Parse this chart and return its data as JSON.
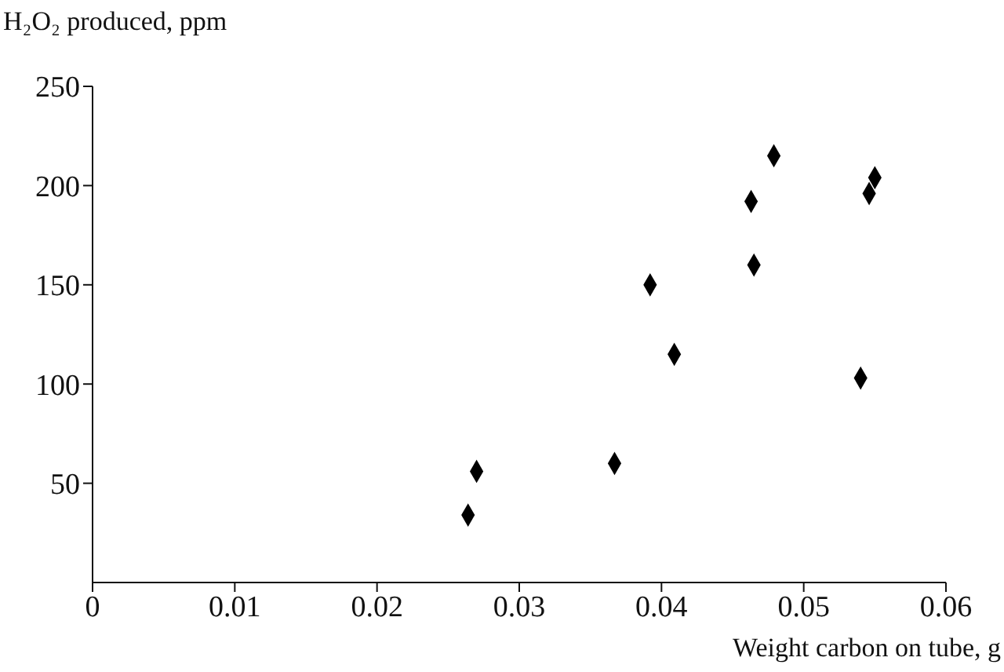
{
  "chart_data": {
    "type": "scatter",
    "xlabel": "Weight carbon on tube, g",
    "ylabel": "H₂O₂ produced, ppm",
    "x": [
      0.0264,
      0.027,
      0.0367,
      0.0392,
      0.0409,
      0.0463,
      0.0465,
      0.0479,
      0.054,
      0.0546,
      0.055
    ],
    "values": [
      34,
      56,
      60,
      150,
      115,
      192,
      160,
      215,
      103,
      196,
      204
    ],
    "color": "#000000",
    "marker": "diamond",
    "xlim": [
      0,
      0.06
    ],
    "xticks": [
      0,
      0.01,
      0.02,
      0.03,
      0.04,
      0.05,
      0.06
    ],
    "ylim": [
      0,
      250
    ],
    "yticks": [
      50,
      100,
      150,
      200,
      250
    ],
    "grid": false,
    "legend": false
  }
}
